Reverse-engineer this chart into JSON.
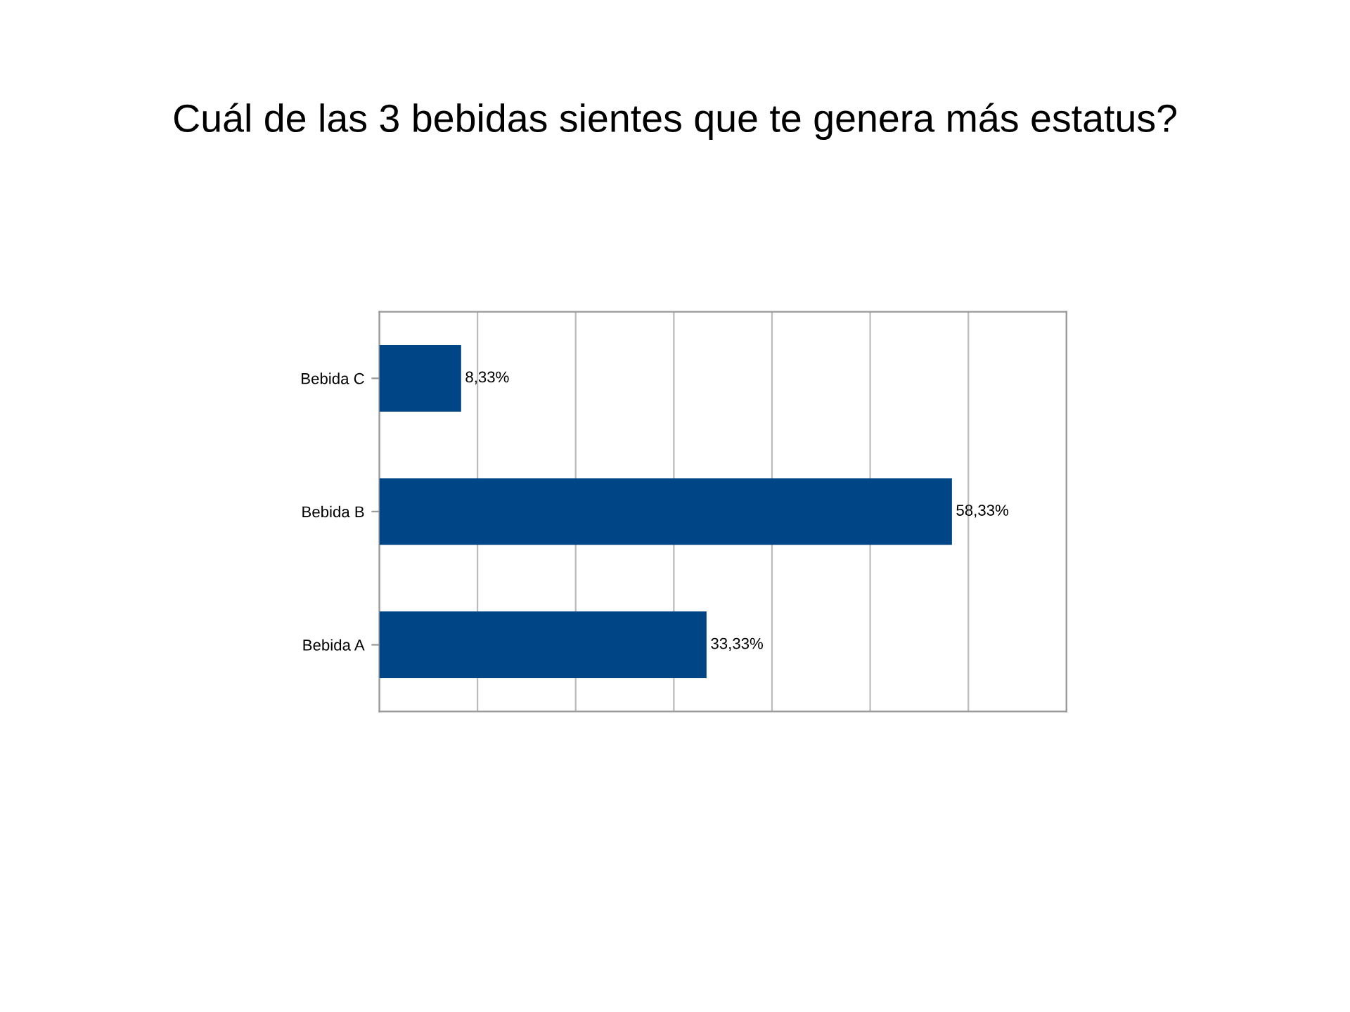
{
  "chart_data": {
    "type": "bar",
    "orientation": "horizontal",
    "title": "Cuál de las 3 bebidas sientes que te genera más estatus?",
    "categories": [
      "Bebida C",
      "Bebida B",
      "Bebida A"
    ],
    "values": [
      8.33,
      58.33,
      33.33
    ],
    "color": "#004586",
    "value_labels": [
      "8,33%",
      "58,33%",
      "33,33%"
    ],
    "xlim": [
      0,
      70
    ],
    "xticks": [
      {
        "value": 0,
        "label": null
      },
      {
        "value": 10,
        "label": null
      },
      {
        "value": 20,
        "label": null
      },
      {
        "value": 30,
        "label": null
      },
      {
        "value": 40,
        "label": null
      },
      {
        "value": 50,
        "label": null
      },
      {
        "value": 60,
        "label": null
      },
      {
        "value": 70,
        "label": null
      }
    ],
    "tick_labels": "y",
    "grid": "x"
  }
}
